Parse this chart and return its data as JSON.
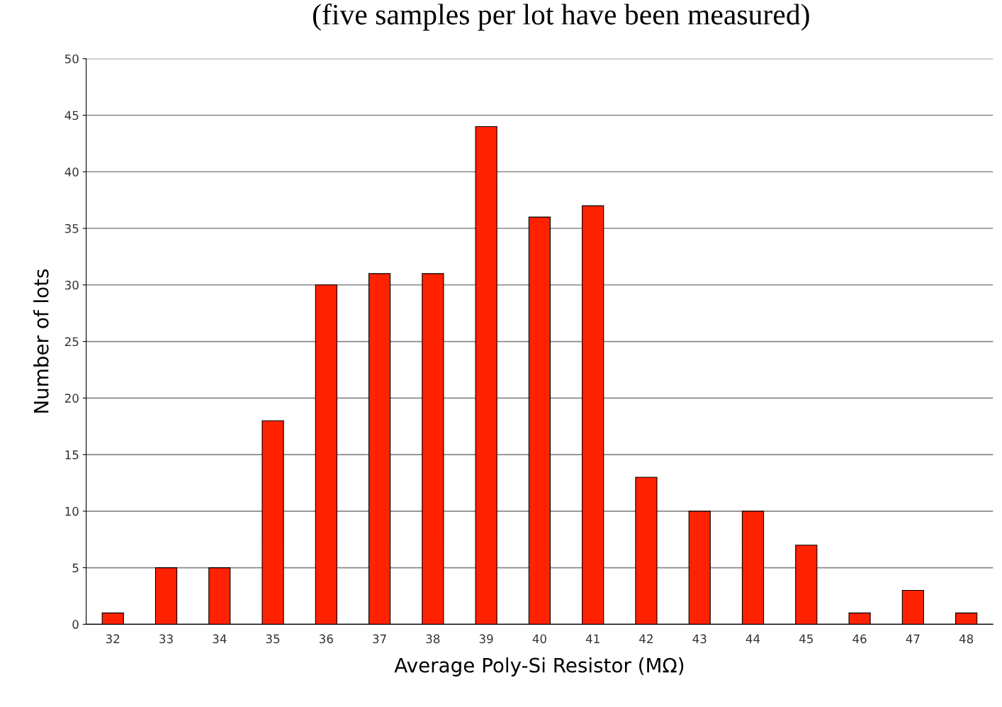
{
  "chart_data": {
    "type": "bar",
    "title": "(five samples per lot have been measured)",
    "xlabel": "Average Poly-Si Resistor (MΩ)",
    "ylabel": "Number of lots",
    "categories": [
      "32",
      "33",
      "34",
      "35",
      "36",
      "37",
      "38",
      "39",
      "40",
      "41",
      "42",
      "43",
      "44",
      "45",
      "46",
      "47",
      "48"
    ],
    "values": [
      1,
      5,
      5,
      18,
      30,
      31,
      31,
      44,
      36,
      37,
      13,
      10,
      10,
      7,
      1,
      3,
      1
    ],
    "color": "#ff2200",
    "ylim": [
      0,
      50
    ],
    "yticks": [
      0,
      5,
      10,
      15,
      20,
      25,
      30,
      35,
      40,
      45,
      50
    ],
    "grid": "y"
  }
}
